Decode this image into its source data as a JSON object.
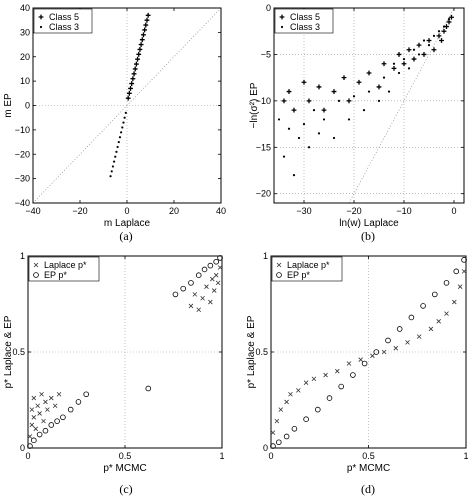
{
  "chart_data": [
    {
      "panel": "a",
      "caption": "(a)",
      "type": "scatter",
      "xlabel": "m Laplace",
      "ylabel": "m EP",
      "xlim": [
        -40,
        40
      ],
      "ylim": [
        -40,
        40
      ],
      "xticks": [
        "−40",
        "−20",
        "0",
        "20",
        "40"
      ],
      "yticks": [
        "−40",
        "−30",
        "−20",
        "−10",
        "0",
        "10",
        "20",
        "30",
        "40"
      ],
      "grid": true,
      "legend_position": "top-left",
      "legend": [
        "Class 5",
        "Class 3"
      ],
      "reference_line": "y = x (dotted)",
      "series": [
        {
          "name": "Class 5",
          "marker": "plus",
          "points": [
            [
              0.5,
              3
            ],
            [
              1,
              5
            ],
            [
              1.5,
              7
            ],
            [
              2,
              9
            ],
            [
              2.5,
              11
            ],
            [
              3,
              13
            ],
            [
              3.5,
              15
            ],
            [
              4,
              17
            ],
            [
              4.5,
              19
            ],
            [
              5,
              21
            ],
            [
              5.5,
              23
            ],
            [
              6,
              25
            ],
            [
              6.5,
              27
            ],
            [
              7,
              29
            ],
            [
              7.5,
              31
            ],
            [
              8,
              33
            ],
            [
              8.5,
              35
            ],
            [
              9,
              37
            ]
          ]
        },
        {
          "name": "Class 3",
          "marker": "dot",
          "points": [
            [
              -0.5,
              -3
            ],
            [
              -1,
              -5
            ],
            [
              -1.5,
              -7
            ],
            [
              -2,
              -9
            ],
            [
              -2.5,
              -11
            ],
            [
              -3,
              -13
            ],
            [
              -3.5,
              -15
            ],
            [
              -4,
              -17
            ],
            [
              -4.5,
              -19
            ],
            [
              -5,
              -21
            ],
            [
              -5.5,
              -23
            ],
            [
              -6,
              -25
            ],
            [
              -6.5,
              -27
            ],
            [
              -7,
              -29
            ]
          ]
        }
      ]
    },
    {
      "panel": "b",
      "caption": "(b)",
      "type": "scatter",
      "xlabel": "ln(w) Laplace",
      "ylabel": "−ln(σ²) EP",
      "xlim": [
        -36,
        2
      ],
      "ylim": [
        -21,
        0
      ],
      "xticks": [
        "−30",
        "−20",
        "−10",
        "0"
      ],
      "yticks": [
        "−20",
        "−15",
        "−10",
        "−5",
        "0"
      ],
      "grid": true,
      "legend_position": "top-left",
      "legend": [
        "Class 5",
        "Class 3"
      ],
      "reference_line": "y = x (dotted)",
      "series": [
        {
          "name": "Class 5",
          "marker": "plus",
          "points": [
            [
              -34,
              -10
            ],
            [
              -33,
              -9
            ],
            [
              -32,
              -11
            ],
            [
              -30,
              -8
            ],
            [
              -29,
              -10
            ],
            [
              -27,
              -8.5
            ],
            [
              -26,
              -11
            ],
            [
              -24,
              -9
            ],
            [
              -22,
              -7.5
            ],
            [
              -21,
              -10
            ],
            [
              -19,
              -8
            ],
            [
              -17,
              -7
            ],
            [
              -15,
              -8.5
            ],
            [
              -14,
              -6
            ],
            [
              -12,
              -6.5
            ],
            [
              -11,
              -5
            ],
            [
              -10,
              -6
            ],
            [
              -9,
              -4.5
            ],
            [
              -8,
              -5.5
            ],
            [
              -7,
              -4
            ],
            [
              -6,
              -5
            ],
            [
              -5,
              -3.5
            ],
            [
              -4,
              -4.5
            ],
            [
              -3,
              -3
            ],
            [
              -2.5,
              -3.5
            ],
            [
              -2,
              -2.5
            ],
            [
              -1.5,
              -2
            ],
            [
              -1,
              -1.5
            ],
            [
              -0.5,
              -1
            ]
          ]
        },
        {
          "name": "Class 3",
          "marker": "dot",
          "points": [
            [
              -35,
              -12
            ],
            [
              -34,
              -16
            ],
            [
              -33,
              -13
            ],
            [
              -32,
              -18
            ],
            [
              -31,
              -14
            ],
            [
              -30,
              -12.5
            ],
            [
              -29,
              -15
            ],
            [
              -28,
              -11
            ],
            [
              -27,
              -13.5
            ],
            [
              -26,
              -12
            ],
            [
              -24,
              -14
            ],
            [
              -23,
              -10
            ],
            [
              -21,
              -12
            ],
            [
              -20,
              -9.5
            ],
            [
              -18,
              -11
            ],
            [
              -17,
              -9
            ],
            [
              -15,
              -10
            ],
            [
              -14,
              -7.5
            ],
            [
              -13,
              -9
            ],
            [
              -12,
              -6
            ],
            [
              -11,
              -7
            ],
            [
              -10,
              -5.5
            ],
            [
              -9,
              -6.5
            ],
            [
              -8,
              -4.5
            ],
            [
              -7,
              -5
            ],
            [
              -6,
              -3.5
            ],
            [
              -5,
              -4
            ],
            [
              -4,
              -3
            ],
            [
              -3,
              -2.5
            ],
            [
              -2,
              -2
            ],
            [
              -1,
              -1.2
            ]
          ]
        }
      ]
    },
    {
      "panel": "c",
      "caption": "(c)",
      "type": "scatter",
      "xlabel": "p* MCMC",
      "ylabel": "p* Laplace & EP",
      "xlim": [
        0,
        1
      ],
      "ylim": [
        0,
        1
      ],
      "xticks": [
        "0",
        "0.5",
        "1"
      ],
      "yticks": [
        "0",
        "0.5",
        "1"
      ],
      "grid": true,
      "legend_position": "top-left",
      "legend": [
        "Laplace p*",
        "EP p*"
      ],
      "series": [
        {
          "name": "Laplace p*",
          "marker": "x",
          "points": [
            [
              0.01,
              0.06
            ],
            [
              0.02,
              0.12
            ],
            [
              0.02,
              0.2
            ],
            [
              0.03,
              0.16
            ],
            [
              0.03,
              0.26
            ],
            [
              0.04,
              0.1
            ],
            [
              0.05,
              0.22
            ],
            [
              0.06,
              0.18
            ],
            [
              0.07,
              0.28
            ],
            [
              0.08,
              0.14
            ],
            [
              0.09,
              0.24
            ],
            [
              0.1,
              0.2
            ],
            [
              0.12,
              0.26
            ],
            [
              0.14,
              0.22
            ],
            [
              0.16,
              0.28
            ],
            [
              0.84,
              0.74
            ],
            [
              0.86,
              0.8
            ],
            [
              0.88,
              0.72
            ],
            [
              0.9,
              0.78
            ],
            [
              0.92,
              0.84
            ],
            [
              0.94,
              0.76
            ],
            [
              0.95,
              0.88
            ],
            [
              0.96,
              0.82
            ],
            [
              0.97,
              0.9
            ],
            [
              0.98,
              0.86
            ],
            [
              0.99,
              0.94
            ]
          ]
        },
        {
          "name": "EP p*",
          "marker": "circle",
          "points": [
            [
              0.01,
              0.01
            ],
            [
              0.03,
              0.04
            ],
            [
              0.06,
              0.07
            ],
            [
              0.09,
              0.09
            ],
            [
              0.12,
              0.12
            ],
            [
              0.15,
              0.14
            ],
            [
              0.18,
              0.16
            ],
            [
              0.22,
              0.2
            ],
            [
              0.26,
              0.24
            ],
            [
              0.3,
              0.28
            ],
            [
              0.62,
              0.31
            ],
            [
              0.76,
              0.8
            ],
            [
              0.8,
              0.83
            ],
            [
              0.84,
              0.86
            ],
            [
              0.88,
              0.9
            ],
            [
              0.91,
              0.93
            ],
            [
              0.94,
              0.95
            ],
            [
              0.97,
              0.97
            ],
            [
              0.99,
              0.99
            ]
          ]
        }
      ]
    },
    {
      "panel": "d",
      "caption": "(d)",
      "type": "scatter",
      "xlabel": "p* MCMC",
      "ylabel": "p* Laplace & EP",
      "xlim": [
        0,
        1
      ],
      "ylim": [
        0,
        1
      ],
      "xticks": [
        "0",
        "0.5",
        "1"
      ],
      "yticks": [
        "0",
        "0.5",
        "1"
      ],
      "grid": true,
      "legend_position": "top-left",
      "legend": [
        "Laplace p*",
        "EP p*"
      ],
      "series": [
        {
          "name": "Laplace p*",
          "marker": "x",
          "points": [
            [
              0.01,
              0.08
            ],
            [
              0.03,
              0.14
            ],
            [
              0.05,
              0.2
            ],
            [
              0.08,
              0.24
            ],
            [
              0.1,
              0.28
            ],
            [
              0.14,
              0.3
            ],
            [
              0.18,
              0.34
            ],
            [
              0.22,
              0.36
            ],
            [
              0.28,
              0.38
            ],
            [
              0.34,
              0.4
            ],
            [
              0.4,
              0.44
            ],
            [
              0.46,
              0.46
            ],
            [
              0.52,
              0.48
            ],
            [
              0.58,
              0.5
            ],
            [
              0.64,
              0.52
            ],
            [
              0.7,
              0.55
            ],
            [
              0.76,
              0.58
            ],
            [
              0.82,
              0.62
            ],
            [
              0.86,
              0.66
            ],
            [
              0.9,
              0.7
            ],
            [
              0.94,
              0.76
            ],
            [
              0.97,
              0.84
            ],
            [
              0.99,
              0.92
            ]
          ]
        },
        {
          "name": "EP p*",
          "marker": "circle",
          "points": [
            [
              0.01,
              0.01
            ],
            [
              0.04,
              0.03
            ],
            [
              0.08,
              0.06
            ],
            [
              0.12,
              0.1
            ],
            [
              0.18,
              0.15
            ],
            [
              0.24,
              0.2
            ],
            [
              0.3,
              0.26
            ],
            [
              0.36,
              0.32
            ],
            [
              0.42,
              0.38
            ],
            [
              0.48,
              0.44
            ],
            [
              0.54,
              0.5
            ],
            [
              0.6,
              0.56
            ],
            [
              0.66,
              0.62
            ],
            [
              0.72,
              0.68
            ],
            [
              0.78,
              0.74
            ],
            [
              0.84,
              0.8
            ],
            [
              0.9,
              0.86
            ],
            [
              0.95,
              0.92
            ],
            [
              0.99,
              0.98
            ]
          ]
        }
      ]
    }
  ]
}
